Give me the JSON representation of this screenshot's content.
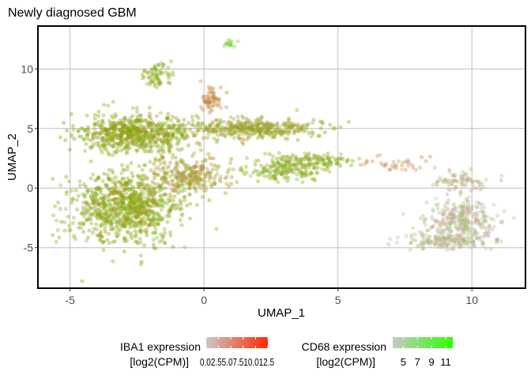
{
  "chart_data": {
    "type": "scatter",
    "title": "Newly diagnosed GBM",
    "xlabel": "UMAP_1",
    "ylabel": "UMAP_2",
    "xlim": [
      -6.2,
      12.0
    ],
    "ylim": [
      -8.4,
      13.6
    ],
    "x_ticks": [
      -5,
      0,
      5,
      10
    ],
    "x_tick_labels": [
      "-5",
      "0",
      "5",
      "10"
    ],
    "y_ticks": [
      -5,
      0,
      5,
      10
    ],
    "y_tick_labels": [
      "-5",
      "0",
      "5",
      "10"
    ],
    "grid": true,
    "legend_position": "bottom",
    "colors": {
      "low": "#c8c8c8",
      "iba1_high": "#ff2a00",
      "cd68_high": "#2cff00",
      "grid": "#bdbdbd",
      "border": "#000000"
    },
    "legends": [
      {
        "title_line1": "IBA1 expression",
        "title_line2": "[log2(CPM)]",
        "tick_text": "0.02.55.07.510.012.5",
        "ticks": [
          0,
          2.5,
          5,
          7.5,
          10,
          12.5
        ],
        "range": [
          0,
          12.5
        ],
        "low_color": "#c8c8c8",
        "high_color": "#ff2a00"
      },
      {
        "title_line1": "CD68 expression",
        "title_line2": "[log2(CPM)]",
        "ticks": [
          5,
          7,
          9,
          11
        ],
        "tick_labels": [
          "5",
          "7",
          "9",
          "11"
        ],
        "range": [
          3.5,
          12
        ],
        "low_color": "#c8c8c8",
        "high_color": "#2cff00"
      }
    ],
    "clusters": [
      {
        "name": "left-top-mass",
        "center": [
          -2.5,
          4.6
        ],
        "spread": [
          1.35,
          1.1
        ],
        "count": 650,
        "iba1": 9,
        "cd68": 10
      },
      {
        "name": "left-bottom-mass",
        "center": [
          -2.9,
          -1.6
        ],
        "spread": [
          1.35,
          2.0
        ],
        "count": 900,
        "iba1": 9,
        "cd68": 10
      },
      {
        "name": "top-blob",
        "center": [
          -1.8,
          9.5
        ],
        "spread": [
          0.4,
          0.55
        ],
        "count": 70,
        "iba1": 8,
        "cd68": 10
      },
      {
        "name": "upper-peak",
        "center": [
          0.3,
          7.6
        ],
        "spread": [
          0.3,
          0.7
        ],
        "count": 60,
        "iba1": 11,
        "cd68": 6
      },
      {
        "name": "middle-band",
        "center": [
          1.8,
          5.0
        ],
        "spread": [
          1.6,
          0.55
        ],
        "count": 380,
        "iba1": 9,
        "cd68": 9
      },
      {
        "name": "right-band",
        "center": [
          3.9,
          2.2
        ],
        "spread": [
          1.1,
          0.45
        ],
        "count": 170,
        "iba1": 8,
        "cd68": 10
      },
      {
        "name": "lower-arm",
        "center": [
          3.0,
          1.3
        ],
        "spread": [
          1.0,
          0.45
        ],
        "count": 110,
        "iba1": 8,
        "cd68": 10
      },
      {
        "name": "bridge",
        "center": [
          -0.5,
          1.2
        ],
        "spread": [
          0.9,
          1.0
        ],
        "count": 260,
        "iba1": 9,
        "cd68": 8
      },
      {
        "name": "top-streak",
        "center": [
          0.95,
          12.2
        ],
        "spread": [
          0.14,
          0.25
        ],
        "count": 14,
        "iba1": 3,
        "cd68": 11
      },
      {
        "name": "trail-points",
        "center": [
          7.2,
          2.0
        ],
        "spread": [
          0.7,
          0.45
        ],
        "count": 35,
        "iba1": 9,
        "cd68": 5
      },
      {
        "name": "right-cluster-main",
        "center": [
          9.6,
          -2.6
        ],
        "spread": [
          0.85,
          1.2
        ],
        "count": 320,
        "iba1": 3,
        "cd68": 5
      },
      {
        "name": "right-cluster-bottom",
        "center": [
          9.1,
          -4.5
        ],
        "spread": [
          1.0,
          0.45
        ],
        "count": 180,
        "iba1": 3,
        "cd68": 5
      },
      {
        "name": "right-arm",
        "center": [
          9.6,
          0.6
        ],
        "spread": [
          0.7,
          0.6
        ],
        "count": 80,
        "iba1": 4,
        "cd68": 5
      }
    ]
  }
}
